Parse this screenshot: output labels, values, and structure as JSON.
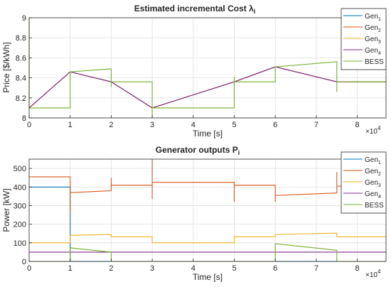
{
  "colors": {
    "gen1": "#0072bd",
    "gen2": "#d95319",
    "gen3": "#edb120",
    "gen4": "#7e2f8e",
    "bess": "#77ac30",
    "grid": "#dfdfdf",
    "axis": "#262626"
  },
  "chart_data": [
    {
      "type": "line",
      "title": "Estimated incremental Cost",
      "title_symbol": "λ",
      "title_subscript": "i",
      "xlabel": "Time [s]",
      "ylabel": "Price [$/kWh]",
      "x_exponent_label": "×10",
      "x_exponent": "4",
      "xlim": [
        0,
        87000
      ],
      "ylim": [
        8,
        9
      ],
      "xticks": [
        0,
        10000,
        20000,
        30000,
        40000,
        50000,
        60000,
        70000,
        80000
      ],
      "xtick_labels": [
        "0",
        "1",
        "2",
        "3",
        "4",
        "5",
        "6",
        "7",
        "8"
      ],
      "yticks": [
        8,
        8.2,
        8.4,
        8.6,
        8.8,
        9
      ],
      "ytick_labels": [
        "8",
        "8.2",
        "8.4",
        "8.6",
        "8.8",
        "9"
      ],
      "grid": true,
      "legend_position": "top-right",
      "series": [
        {
          "name": "Gen",
          "subscript": "1",
          "color_key": "gen1",
          "x": [
            0,
            10000,
            20000,
            30000,
            50000,
            60000,
            75000,
            87000
          ],
          "y": [
            8.1,
            8.46,
            8.36,
            8.1,
            8.36,
            8.51,
            8.36,
            8.36
          ]
        },
        {
          "name": "Gen",
          "subscript": "2",
          "color_key": "gen2",
          "x": [
            0,
            10000,
            20000,
            30000,
            50000,
            60000,
            75000,
            87000
          ],
          "y": [
            8.1,
            8.46,
            8.36,
            8.1,
            8.36,
            8.51,
            8.36,
            8.36
          ]
        },
        {
          "name": "Gen",
          "subscript": "3",
          "color_key": "gen3",
          "x": [
            0,
            10000,
            20000,
            30000,
            50000,
            60000,
            75000,
            87000
          ],
          "y": [
            8.1,
            8.46,
            8.36,
            8.1,
            8.36,
            8.51,
            8.36,
            8.36
          ]
        },
        {
          "name": "Gen",
          "subscript": "4",
          "color_key": "gen4",
          "x": [
            0,
            10000,
            20000,
            30000,
            50000,
            60000,
            75000,
            87000
          ],
          "y": [
            8.1,
            8.46,
            8.36,
            8.1,
            8.36,
            8.51,
            8.36,
            8.36
          ]
        },
        {
          "name": "BESS",
          "subscript": "",
          "color_key": "bess",
          "x": [
            0,
            0,
            0,
            10000,
            10000,
            20000,
            20000,
            20000,
            30000,
            30000,
            30000,
            50000,
            50000,
            50000,
            60000,
            60000,
            60000,
            75000,
            75000,
            75000,
            87000
          ],
          "y": [
            9.0,
            8.1,
            8.1,
            8.1,
            8.46,
            8.49,
            8.31,
            8.36,
            8.36,
            8.0,
            8.1,
            8.1,
            8.41,
            8.36,
            8.36,
            8.46,
            8.51,
            8.56,
            8.26,
            8.36,
            8.36
          ]
        }
      ]
    },
    {
      "type": "line",
      "title": "Generator outputs P",
      "title_subscript": "i",
      "xlabel": "Time [s]",
      "ylabel": "Power [kW]",
      "x_exponent_label": "×10",
      "x_exponent": "4",
      "xlim": [
        0,
        87000
      ],
      "ylim": [
        0,
        550
      ],
      "xticks": [
        0,
        10000,
        20000,
        30000,
        40000,
        50000,
        60000,
        70000,
        80000
      ],
      "xtick_labels": [
        "0",
        "1",
        "2",
        "3",
        "4",
        "5",
        "6",
        "7",
        "8"
      ],
      "yticks": [
        0,
        100,
        200,
        300,
        400,
        500
      ],
      "ytick_labels": [
        "0",
        "100",
        "200",
        "300",
        "400",
        "500"
      ],
      "grid": true,
      "legend_position": "top-right",
      "series": [
        {
          "name": "Gen",
          "subscript": "1",
          "color_key": "gen1",
          "x": [
            0,
            10000,
            10000,
            87000
          ],
          "y": [
            400,
            400,
            0,
            0
          ]
        },
        {
          "name": "Gen",
          "subscript": "2",
          "color_key": "gen2",
          "x": [
            0,
            0,
            10000,
            10000,
            10000,
            20000,
            20000,
            20000,
            20000,
            30000,
            30000,
            30000,
            30000,
            50000,
            50000,
            50000,
            50000,
            60000,
            60000,
            60000,
            60000,
            75000,
            75000,
            75000,
            75000,
            87000
          ],
          "y": [
            455,
            455,
            455,
            265,
            370,
            380,
            450,
            395,
            410,
            410,
            550,
            335,
            425,
            425,
            320,
            410,
            410,
            410,
            320,
            355,
            355,
            368,
            480,
            380,
            405,
            405
          ]
        },
        {
          "name": "Gen",
          "subscript": "3",
          "color_key": "gen3",
          "x": [
            0,
            10000,
            10000,
            20000,
            20000,
            30000,
            30000,
            50000,
            50000,
            60000,
            60000,
            75000,
            75000,
            87000
          ],
          "y": [
            100,
            100,
            140,
            145,
            133,
            133,
            100,
            100,
            133,
            133,
            145,
            152,
            133,
            133
          ]
        },
        {
          "name": "Gen",
          "subscript": "4",
          "color_key": "gen4",
          "x": [
            0,
            87000
          ],
          "y": [
            50,
            50
          ]
        },
        {
          "name": "BESS",
          "subscript": "",
          "color_key": "bess",
          "x": [
            0,
            10000,
            10000,
            20000,
            20000,
            60000,
            60000,
            75000,
            75000,
            87000
          ],
          "y": [
            0,
            0,
            73,
            50,
            0,
            0,
            95,
            60,
            0,
            0
          ]
        }
      ]
    }
  ]
}
